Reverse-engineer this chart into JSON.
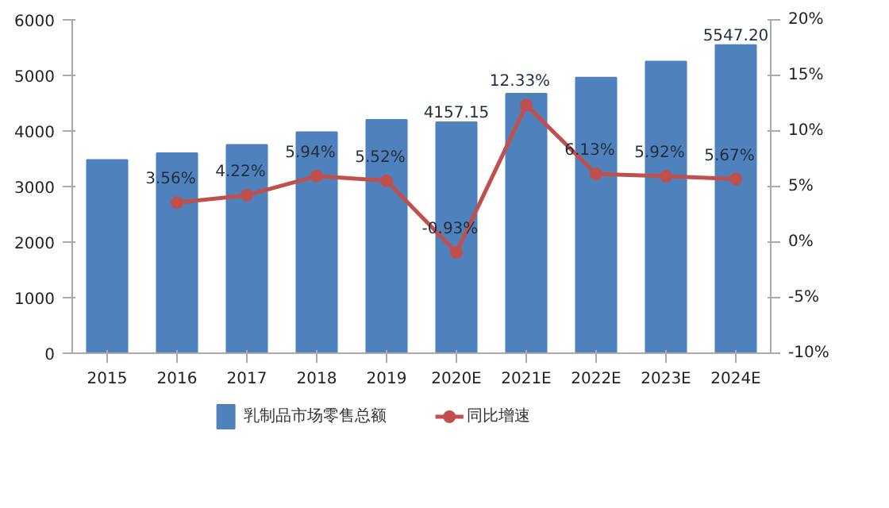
{
  "chart_data": {
    "type": "bar",
    "categories": [
      "2015",
      "2016",
      "2017",
      "2018",
      "2019",
      "2020E",
      "2021E",
      "2022E",
      "2023E",
      "2024E"
    ],
    "series": [
      {
        "name": "乳制品市场零售总额",
        "color": "#4f81bd",
        "values": [
          3480,
          3600,
          3750,
          3980,
          4200,
          4157.15,
          4670,
          4960,
          5250,
          5547.2
        ],
        "value_labels": [
          null,
          null,
          null,
          null,
          null,
          "4157.15",
          null,
          null,
          null,
          "5547.20"
        ]
      },
      {
        "name": "同比增速",
        "type": "line",
        "axis": "y2",
        "color": "#c0504d",
        "marker": "circle",
        "values": [
          null,
          3.56,
          4.22,
          5.94,
          5.52,
          -0.93,
          12.33,
          6.13,
          5.92,
          5.67
        ],
        "value_labels": [
          null,
          "3.56%",
          "4.22%",
          "5.94%",
          "5.52%",
          "-0.93%",
          "12.33%",
          "6.13%",
          "5.92%",
          "5.67%"
        ]
      }
    ],
    "ylim": [
      0,
      6000
    ],
    "yticks": [
      0,
      1000,
      2000,
      3000,
      4000,
      5000,
      6000
    ],
    "y2lim": [
      -10,
      20
    ],
    "y2ticks": [
      {
        "value": -10,
        "label": "-10%"
      },
      {
        "value": -5,
        "label": "-5%"
      },
      {
        "value": 0,
        "label": "0%"
      },
      {
        "value": 5,
        "label": "5%"
      },
      {
        "value": 10,
        "label": "10%"
      },
      {
        "value": 15,
        "label": "15%"
      },
      {
        "value": 20,
        "label": "20%"
      }
    ],
    "grid": false,
    "legend": "bottom"
  }
}
